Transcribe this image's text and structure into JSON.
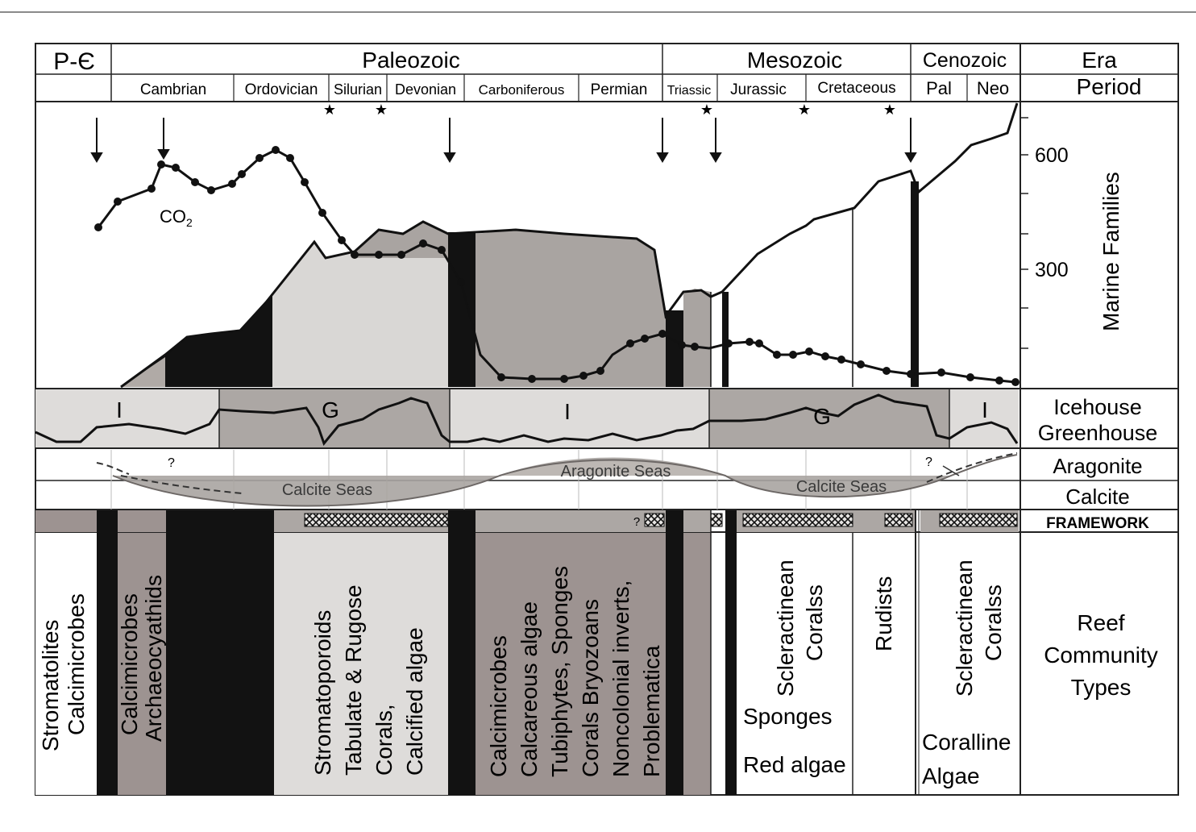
{
  "eras": {
    "pc": "P-Є",
    "paleozoic": "Paleozoic",
    "mesozoic": "Mesozoic",
    "cenozoic": "Cenozoic",
    "col_label": "Era"
  },
  "periods": {
    "cambrian": "Cambrian",
    "ordovician": "Ordovician",
    "silurian": "Silurian",
    "devonian": "Devonian",
    "carboniferous": "Carboniferous",
    "permian": "Permian",
    "triassic": "Triassic",
    "jurassic": "Jurassic",
    "cretaceous": "Cretaceous",
    "pal": "Pal",
    "neo": "Neo",
    "col_label": "Period"
  },
  "families_axis": {
    "label": "Marine Families",
    "ticks": [
      "600",
      "300"
    ]
  },
  "co2_label": "CO",
  "co2_subscript": "2",
  "climate": {
    "labels": [
      "I",
      "G",
      "I",
      "G",
      "I"
    ],
    "side_label_1": "Icehouse",
    "side_label_2": "Greenhouse"
  },
  "seas": {
    "calcite_1": "Calcite Seas",
    "aragonite": "Aragonite Seas",
    "calcite_2": "Calcite Seas",
    "q1": "?",
    "q2": "?",
    "side_aragonite": "Aragonite",
    "side_calcite": "Calcite"
  },
  "framework": {
    "label": "FRAMEWORK",
    "q": "?"
  },
  "reef": {
    "col1_l1": "Stromatolites",
    "col1_l2": "Calcimicrobes",
    "col2_l1": "Calcimicrobes",
    "col2_l2": "Archaeocyathids",
    "col3_l1": "Stromatoporoids",
    "col3_l2": "Tabulate & Rugose",
    "col3_l3": "Corals,",
    "col3_l4": "Calcified algae",
    "col4_l1": "Calcimicrobes",
    "col4_l2": "Calcareous algae",
    "col4_l3": "Tubiphytes, Sponges",
    "col4_l4": "Corals Bryozoans",
    "col4_l5": "Noncolonial inverts,",
    "col4_l6": "Problematica",
    "col5_l1": "Scleractinean",
    "col5_l2": "Coralss",
    "col5_l3": "Sponges",
    "col5_l4": "Red algae",
    "col6": "Rudists",
    "col7_l1": "Scleractinean",
    "col7_l2": "Coralss",
    "col7_l3": "Coralline",
    "col7_l4": "Algae",
    "side_l1": "Reef",
    "side_l2": "Community",
    "side_l3": "Types"
  }
}
